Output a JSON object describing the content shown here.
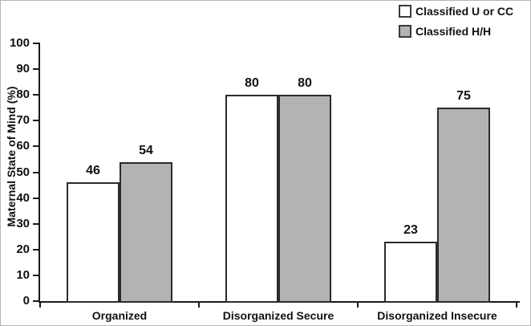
{
  "chart_data": {
    "type": "bar",
    "title": "",
    "ylabel": "Maternal State of Mind (%)",
    "xlabel": "",
    "ylim": [
      0,
      100
    ],
    "yticks": [
      0,
      10,
      20,
      30,
      40,
      50,
      60,
      70,
      80,
      90,
      100
    ],
    "grid": false,
    "legend_position": "top-right",
    "categories": [
      "Organized",
      "Disorganized Secure",
      "Disorganized Insecure"
    ],
    "series": [
      {
        "name": "Classified U or CC",
        "fill": "#ffffff",
        "values": [
          46,
          80,
          23
        ]
      },
      {
        "name": "Classified H/H",
        "fill": "#b3b3b3",
        "values": [
          54,
          80,
          75
        ]
      }
    ],
    "value_labels": [
      [
        46,
        80,
        23
      ],
      [
        54,
        80,
        75
      ]
    ],
    "colors": {
      "bar_border": "#2b2b2b",
      "axis": "#1a1a1a",
      "text": "#111111",
      "background": "#ffffff"
    }
  }
}
